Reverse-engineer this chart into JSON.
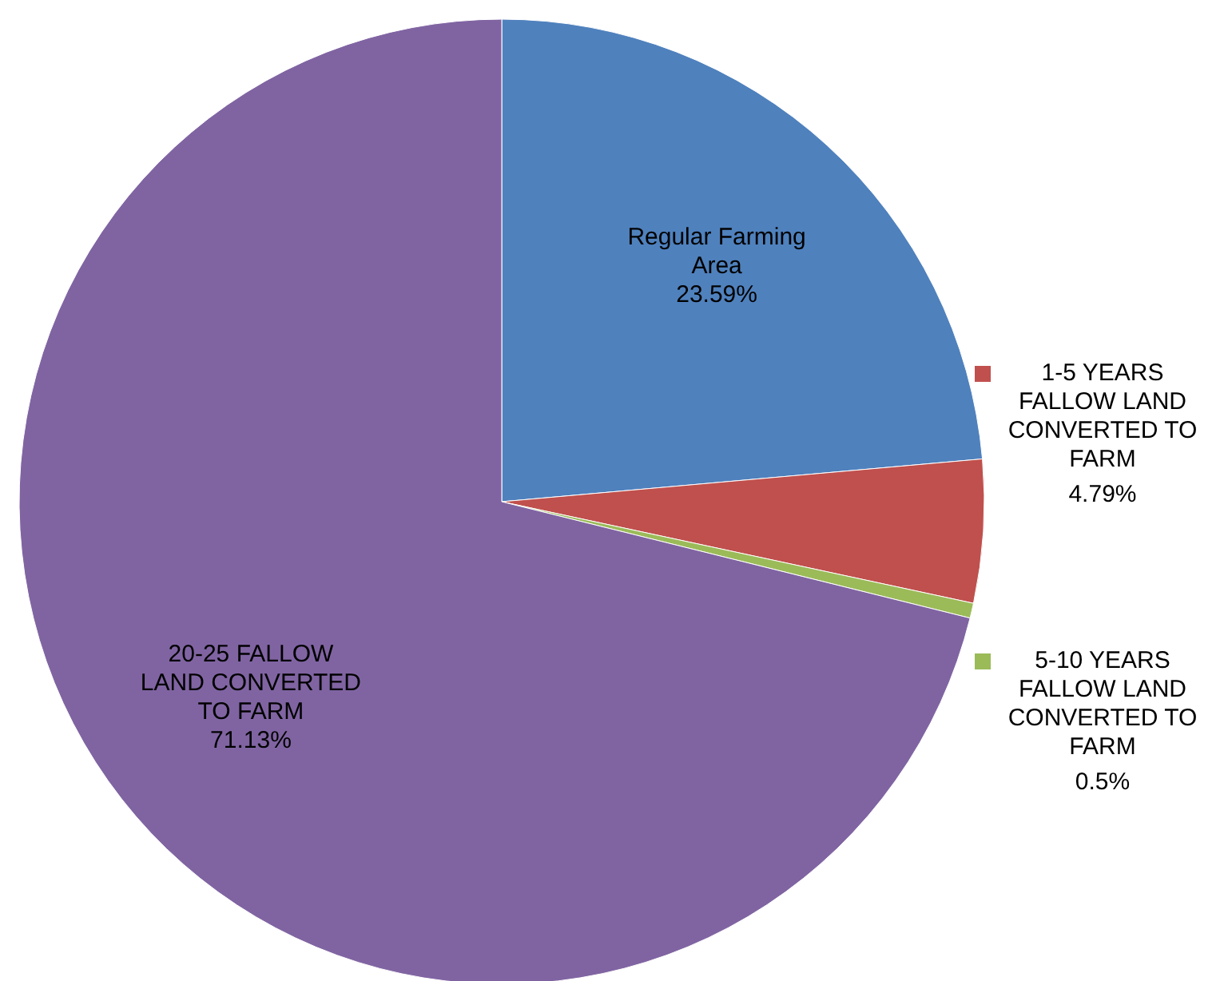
{
  "chart_data": {
    "type": "pie",
    "categories": [
      "Regular Farming\nArea",
      "1-5 YEARS\nFALLOW LAND\nCONVERTED TO\nFARM",
      "5-10 YEARS\nFALLOW LAND\nCONVERTED TO\nFARM",
      "20-25 FALLOW\nLAND CONVERTED\nTO FARM"
    ],
    "values": [
      23.59,
      4.79,
      0.5,
      71.13
    ],
    "colors": [
      "#4f81bd",
      "#c0504d",
      "#9bbb59",
      "#8064a2"
    ],
    "value_labels": [
      "23.59%",
      "4.79%",
      "0.5%",
      "71.13%"
    ],
    "legend": "right"
  }
}
